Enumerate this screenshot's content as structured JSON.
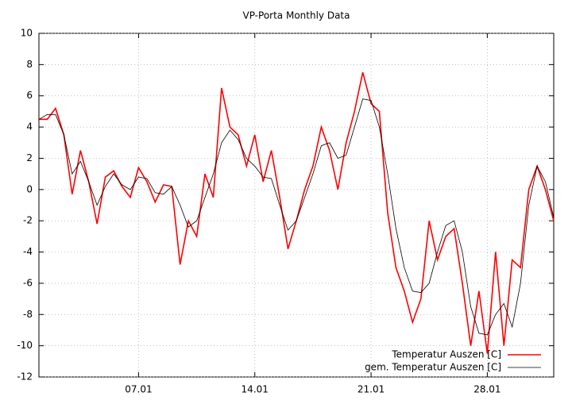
{
  "chart_data": {
    "type": "line",
    "title": "VP-Porta Monthly Data",
    "x": [
      1,
      1.5,
      2,
      2.5,
      3,
      3.5,
      4,
      4.5,
      5,
      5.5,
      6,
      6.5,
      7,
      7.5,
      8,
      8.5,
      9,
      9.5,
      10,
      10.5,
      11,
      11.5,
      12,
      12.5,
      13,
      13.5,
      14,
      14.5,
      15,
      15.5,
      16,
      16.5,
      17,
      17.5,
      18,
      18.5,
      19,
      19.5,
      20,
      20.5,
      21,
      21.5,
      22,
      22.5,
      23,
      23.5,
      24,
      24.5,
      25,
      25.5,
      26,
      26.5,
      27,
      27.5,
      28,
      28.5,
      29,
      29.5,
      30,
      30.5,
      31,
      31.5,
      32
    ],
    "series": [
      {
        "name": "Temperatur Auszen [C]",
        "color": "#ff0000",
        "values": [
          4.5,
          4.5,
          5.2,
          3.5,
          -0.3,
          2.5,
          0.5,
          -2.2,
          0.8,
          1.2,
          0.2,
          -0.5,
          1.4,
          0.5,
          -0.8,
          0.3,
          0.2,
          -4.8,
          -2.0,
          -3.0,
          1.0,
          -0.5,
          6.5,
          4.0,
          3.5,
          1.5,
          3.5,
          0.5,
          2.5,
          -0.5,
          -3.8,
          -2.0,
          0.0,
          1.5,
          4.0,
          2.5,
          0.0,
          3.0,
          5.0,
          7.5,
          5.5,
          5.0,
          -1.5,
          -5.0,
          -6.5,
          -8.5,
          -7.0,
          -2.0,
          -4.5,
          -3.0,
          -2.5,
          -6.0,
          -10.0,
          -6.5,
          -10.5,
          -4.0,
          -10.0,
          -4.5,
          -5.0,
          0.0,
          1.5,
          0.0,
          -2.0
        ]
      },
      {
        "name": "gem. Temperatur Auszen [C]",
        "color": "#000000",
        "values": [
          4.5,
          4.8,
          4.8,
          3.5,
          1.0,
          1.8,
          0.5,
          -1.0,
          0.2,
          1.0,
          0.3,
          0.0,
          0.8,
          0.7,
          -0.2,
          -0.3,
          0.2,
          -1.0,
          -2.4,
          -2.0,
          -0.5,
          1.0,
          3.0,
          3.8,
          3.2,
          2.0,
          1.5,
          0.8,
          0.7,
          -1.0,
          -2.6,
          -2.0,
          -0.5,
          1.0,
          2.8,
          3.0,
          2.0,
          2.2,
          4.0,
          5.8,
          5.7,
          4.0,
          1.0,
          -2.5,
          -5.0,
          -6.5,
          -6.6,
          -6.0,
          -4.0,
          -2.3,
          -2.0,
          -4.0,
          -7.5,
          -9.2,
          -9.3,
          -8.0,
          -7.3,
          -8.8,
          -6.0,
          -1.0,
          1.5,
          0.5,
          -1.8
        ]
      }
    ],
    "xlim": [
      1,
      32
    ],
    "xticks": [
      {
        "value": 7,
        "label": "07.01"
      },
      {
        "value": 14,
        "label": "14.01"
      },
      {
        "value": 21,
        "label": "21.01"
      },
      {
        "value": 28,
        "label": "28.01"
      }
    ],
    "ylim": [
      -12,
      10
    ],
    "yticks": [
      -12,
      -10,
      -8,
      -6,
      -4,
      -2,
      0,
      2,
      4,
      6,
      8,
      10
    ],
    "grid": true,
    "legend": "bottom-right"
  }
}
